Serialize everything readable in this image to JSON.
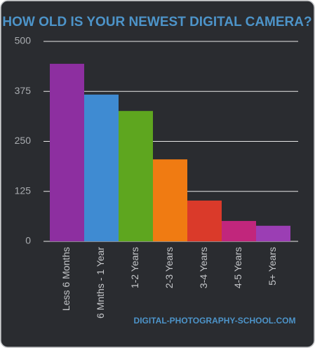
{
  "chart_data": {
    "type": "bar",
    "title": "HOW OLD IS YOUR NEWEST DIGITAL CAMERA?",
    "categories": [
      "Less 6 Months",
      "6 Mnths - 1 Year",
      "1-2 Years",
      "2-3 Years",
      "3-4 Years",
      "4-5 Years",
      "5+ Years"
    ],
    "values": [
      444,
      367,
      326,
      205,
      102,
      51,
      39
    ],
    "colors": [
      "#8d2fa0",
      "#3f8bd2",
      "#5ea61f",
      "#f07b12",
      "#da3a2a",
      "#c1267c",
      "#9b3eb4"
    ],
    "ylim": [
      0,
      500
    ],
    "yticks": [
      0,
      125,
      250,
      375,
      500
    ],
    "grid": true,
    "source": "DIGITAL-PHOTOGRAPHY-SCHOOL.COM"
  }
}
